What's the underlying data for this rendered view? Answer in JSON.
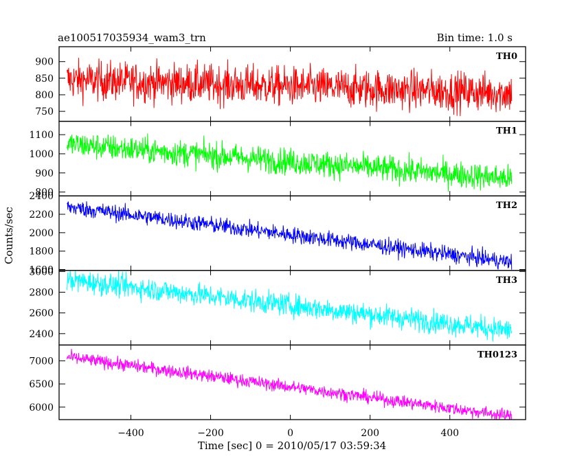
{
  "chart_data": {
    "type": "line",
    "title": "ae100517035934_wam3_trn",
    "subtitle": "Bin time: 1.0 s",
    "xlabel": "Time [sec] 0 = 2010/05/17 03:59:34",
    "ylabel": "Counts/sec",
    "xlim": [
      -580,
      590
    ],
    "x_ticks": [
      -400,
      -200,
      0,
      200,
      400
    ],
    "x_tick_labels": [
      "−400",
      "−200",
      "0",
      "200",
      "400"
    ],
    "x_data_range": [
      -560,
      555
    ],
    "grid": false,
    "panels": [
      {
        "name": "TH0",
        "color": "#ff0000",
        "ylim": [
          720,
          945
        ],
        "y_ticks": [
          750,
          800,
          850,
          900
        ],
        "y_tick_labels": [
          "750",
          "800",
          "850",
          "900"
        ],
        "trend_start": 845,
        "trend_end": 805,
        "noise": 30
      },
      {
        "name": "TH1",
        "color": "#00ff00",
        "ylim": [
          780,
          1170
        ],
        "y_ticks": [
          800,
          900,
          1000,
          1100
        ],
        "y_tick_labels": [
          "800",
          "900",
          "1000",
          "1100"
        ],
        "trend_start": 1050,
        "trend_end": 870,
        "noise": 35
      },
      {
        "name": "TH2",
        "color": "#0000ff",
        "ylim": [
          1590,
          2400
        ],
        "y_ticks": [
          1600,
          1800,
          2000,
          2200,
          2400
        ],
        "y_tick_labels": [
          "1600",
          "1800",
          "2000",
          "2200",
          "2400"
        ],
        "trend_start": 2280,
        "trend_end": 1680,
        "noise": 45
      },
      {
        "name": "TH3",
        "color": "#00ffff",
        "ylim": [
          2290,
          3010
        ],
        "y_ticks": [
          2400,
          2600,
          2800,
          3000
        ],
        "y_tick_labels": [
          "2400",
          "2600",
          "2800",
          "3000"
        ],
        "trend_start": 2920,
        "trend_end": 2430,
        "noise": 55
      },
      {
        "name": "TH0123",
        "color": "#ff00ff",
        "ylim": [
          5730,
          7340
        ],
        "y_ticks": [
          6000,
          6500,
          7000
        ],
        "y_tick_labels": [
          "6000",
          "6500",
          "7000"
        ],
        "trend_start": 7080,
        "trend_end": 5800,
        "noise": 70
      }
    ]
  }
}
